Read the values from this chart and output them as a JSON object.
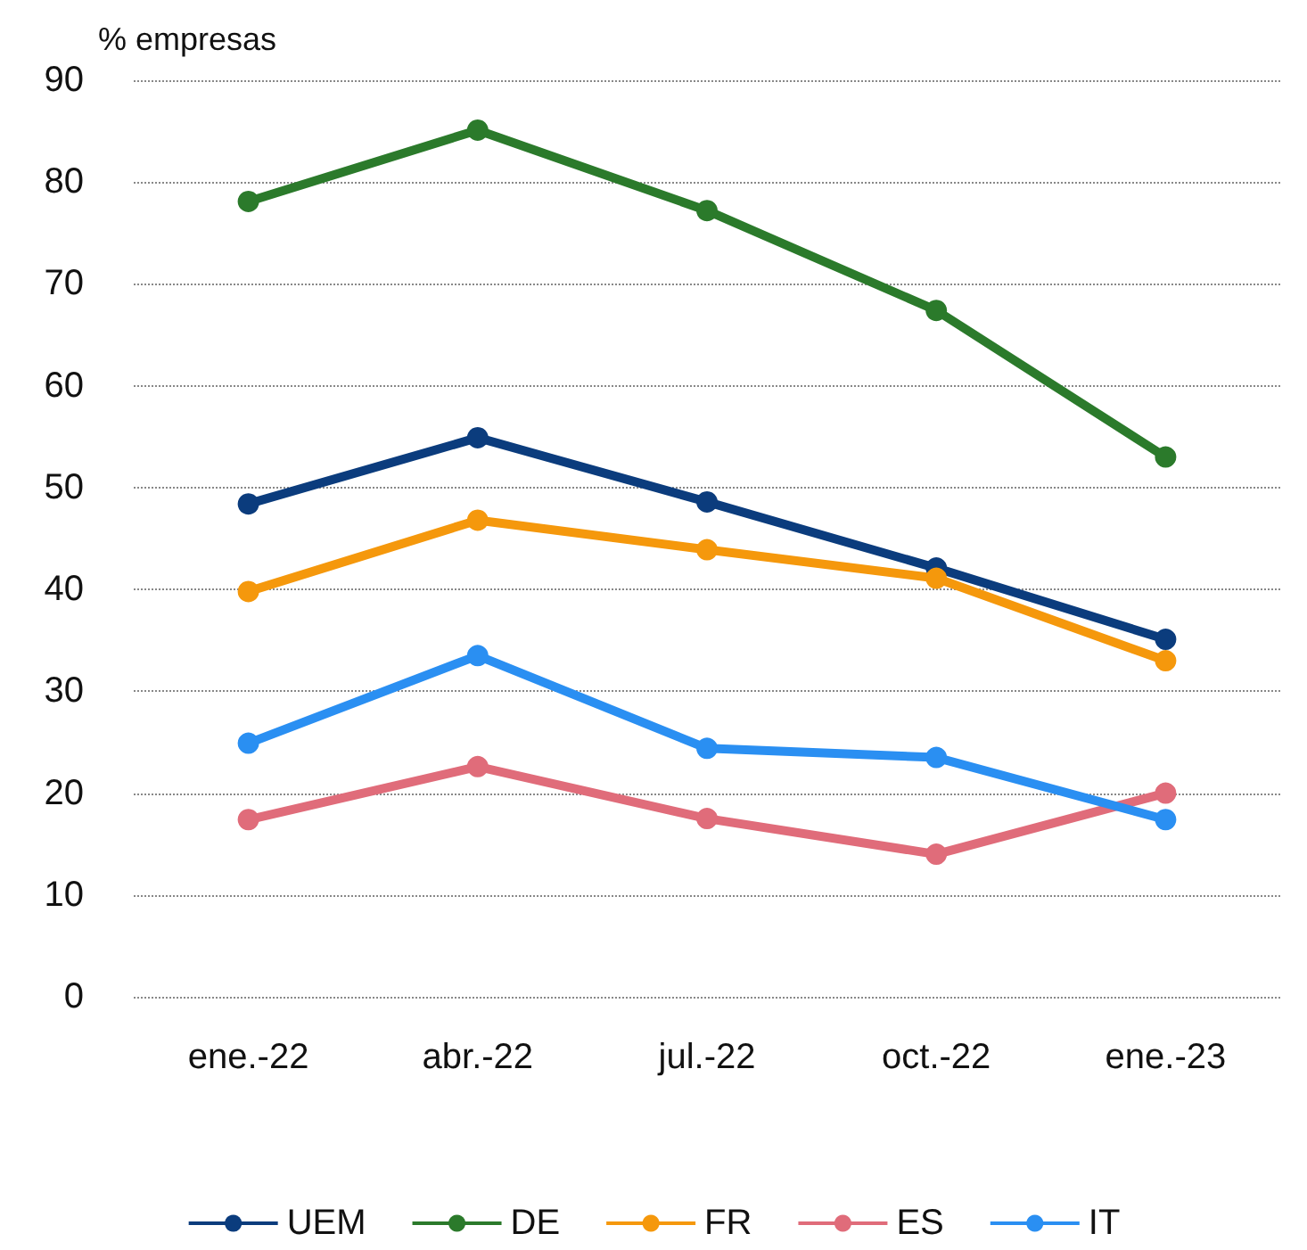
{
  "chart_data": {
    "type": "line",
    "ylabel": "% empresas",
    "categories": [
      "ene.-22",
      "abr.-22",
      "jul.-22",
      "oct.-22",
      "ene.-23"
    ],
    "series": [
      {
        "name": "UEM",
        "color": "#0b3c7d",
        "values": [
          48.4,
          54.9,
          48.6,
          42.1,
          35.1
        ]
      },
      {
        "name": "DE",
        "color": "#2b7a2b",
        "values": [
          78.1,
          85.1,
          77.2,
          67.4,
          53.0
        ]
      },
      {
        "name": "FR",
        "color": "#f5980c",
        "values": [
          39.8,
          46.8,
          43.9,
          41.1,
          33.0
        ]
      },
      {
        "name": "ES",
        "color": "#e06c7a",
        "values": [
          17.4,
          22.6,
          17.5,
          14.0,
          20.0
        ]
      },
      {
        "name": "IT",
        "color": "#2a8ff2",
        "values": [
          24.9,
          33.5,
          24.4,
          23.5,
          17.4
        ]
      }
    ],
    "ylim": [
      0,
      90
    ],
    "yticks": [
      0,
      10,
      20,
      30,
      40,
      50,
      60,
      70,
      80,
      90
    ],
    "grid": "y",
    "legend": "bottom",
    "marker": "circle",
    "line_style": "solid"
  }
}
